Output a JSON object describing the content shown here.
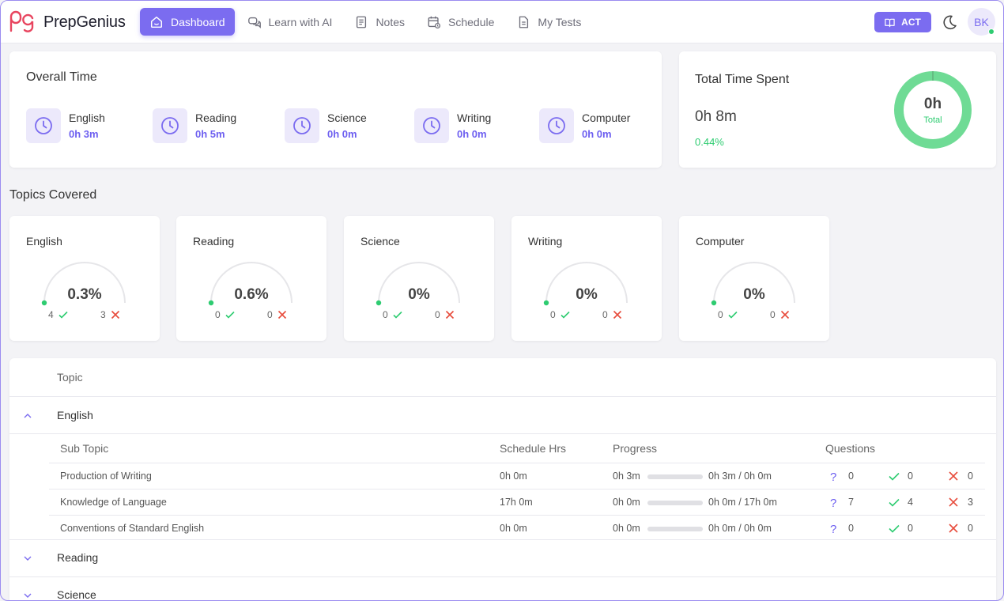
{
  "app": {
    "name": "PrepGenius"
  },
  "nav": [
    {
      "label": "Dashboard",
      "icon": "home-icon",
      "active": true
    },
    {
      "label": "Learn with AI",
      "icon": "chat-icon",
      "active": false
    },
    {
      "label": "Notes",
      "icon": "notes-icon",
      "active": false
    },
    {
      "label": "Schedule",
      "icon": "calendar-icon",
      "active": false
    },
    {
      "label": "My Tests",
      "icon": "document-icon",
      "active": false
    }
  ],
  "header": {
    "exam_label": "ACT",
    "avatar_initials": "BK"
  },
  "overall_time": {
    "title": "Overall Time",
    "subjects": [
      {
        "name": "English",
        "time": "0h 3m"
      },
      {
        "name": "Reading",
        "time": "0h 5m"
      },
      {
        "name": "Science",
        "time": "0h 0m"
      },
      {
        "name": "Writing",
        "time": "0h 0m"
      },
      {
        "name": "Computer",
        "time": "0h 0m"
      }
    ]
  },
  "total_time": {
    "title": "Total Time Spent",
    "value": "0h 8m",
    "percent": "0.44%",
    "donut_value": "0h",
    "donut_label": "Total"
  },
  "topics_covered": {
    "title": "Topics Covered",
    "cards": [
      {
        "name": "English",
        "percent": "0.3%",
        "progress": 0.003,
        "correct": "4",
        "wrong": "3"
      },
      {
        "name": "Reading",
        "percent": "0.6%",
        "progress": 0.006,
        "correct": "0",
        "wrong": "0"
      },
      {
        "name": "Science",
        "percent": "0%",
        "progress": 0,
        "correct": "0",
        "wrong": "0"
      },
      {
        "name": "Writing",
        "percent": "0%",
        "progress": 0,
        "correct": "0",
        "wrong": "0"
      },
      {
        "name": "Computer",
        "percent": "0%",
        "progress": 0,
        "correct": "0",
        "wrong": "0"
      }
    ]
  },
  "table": {
    "header_topic": "Topic",
    "topics": [
      {
        "name": "English",
        "expanded": true
      },
      {
        "name": "Reading",
        "expanded": false
      },
      {
        "name": "Science",
        "expanded": false
      }
    ],
    "sub_headers": {
      "sub_topic": "Sub Topic",
      "schedule": "Schedule Hrs",
      "progress": "Progress",
      "questions": "Questions"
    },
    "sub_rows": [
      {
        "sub_topic": "Production of Writing",
        "schedule": "0h 0m",
        "spent": "0h 3m",
        "progress_text": "0h 3m / 0h 0m",
        "progress": 0,
        "questions": "0",
        "correct": "0",
        "wrong": "0"
      },
      {
        "sub_topic": "Knowledge of Language",
        "schedule": "17h 0m",
        "spent": "0h 0m",
        "progress_text": "0h 0m / 17h 0m",
        "progress": 0,
        "questions": "7",
        "correct": "4",
        "wrong": "3"
      },
      {
        "sub_topic": "Conventions of Standard English",
        "schedule": "0h 0m",
        "spent": "0h 0m",
        "progress_text": "0h 0m / 0h 0m",
        "progress": 0,
        "questions": "0",
        "correct": "0",
        "wrong": "0"
      }
    ]
  },
  "colors": {
    "accent": "#7b6cf0",
    "success": "#2ecc71",
    "danger": "#e74c3c",
    "brand": "#e8455f"
  }
}
